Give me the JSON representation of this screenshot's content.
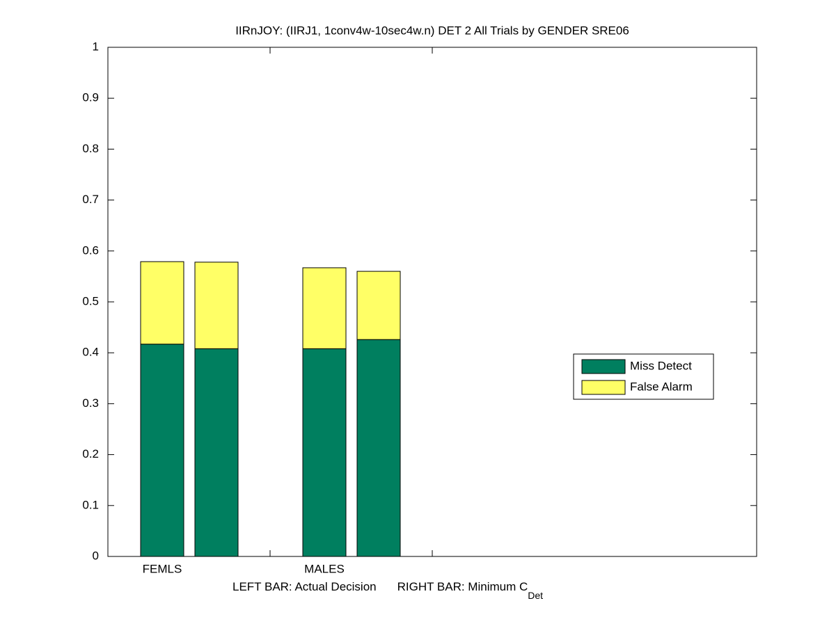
{
  "chart_data": {
    "type": "bar",
    "stacked": true,
    "title": "IIRnJOY: (IIRJ1, 1conv4w-10sec4w.n) DET 2 All Trials by GENDER SRE06",
    "xlabel": {
      "left": "LEFT BAR: Actual Decision",
      "right": "RIGHT BAR: Minimum C",
      "subscript": "Det"
    },
    "categories": [
      "FEMLS",
      "MALES"
    ],
    "series": [
      {
        "name": "Miss Detect",
        "color": "#007f5f",
        "values": [
          [
            0.417,
            0.408
          ],
          [
            0.408,
            0.426
          ]
        ]
      },
      {
        "name": "False Alarm",
        "color": "#ffff66",
        "values": [
          [
            0.162,
            0.17
          ],
          [
            0.159,
            0.134
          ]
        ]
      }
    ],
    "ylim": [
      0,
      1
    ],
    "yticks": [
      0,
      0.1,
      0.2,
      0.3,
      0.4,
      0.5,
      0.6,
      0.7,
      0.8,
      0.9,
      1
    ],
    "legend": "right"
  }
}
